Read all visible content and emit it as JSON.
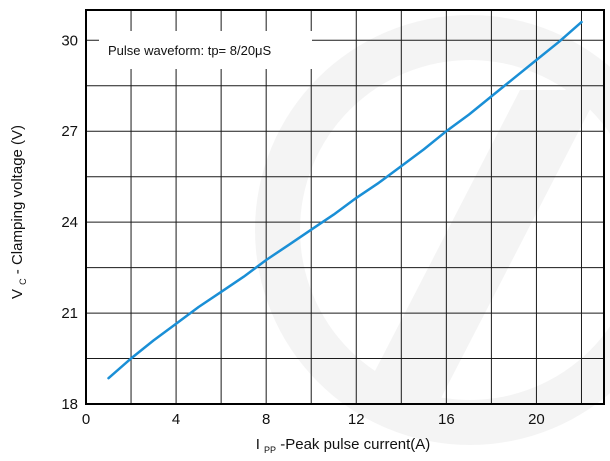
{
  "chart_data": {
    "type": "line",
    "annotation": "Pulse waveform: tp= 8/20μS",
    "xlabel": {
      "prefix": "I",
      "subscript": "PP",
      "suffix": "-Peak pulse current(A)"
    },
    "ylabel": {
      "prefix": "V",
      "subscript": "C",
      "suffix": "- Clamping voltage (V)"
    },
    "xlim": [
      0,
      23
    ],
    "ylim": [
      18,
      31
    ],
    "x_ticks": [
      0,
      4,
      8,
      12,
      16,
      20
    ],
    "y_ticks": [
      18,
      21,
      24,
      27,
      30
    ],
    "x_grid_step": 2,
    "y_grid_step": 1.5,
    "grid": true,
    "series": [
      {
        "color": "#1a8fd6",
        "x": [
          1,
          2,
          3,
          4,
          5,
          6,
          7,
          8,
          9,
          10,
          11,
          12,
          13,
          14,
          15,
          16,
          17,
          18,
          19,
          20,
          21,
          22
        ],
        "y": [
          18.85,
          19.5,
          20.1,
          20.65,
          21.2,
          21.7,
          22.2,
          22.75,
          23.25,
          23.75,
          24.25,
          24.8,
          25.3,
          25.85,
          26.4,
          27.0,
          27.55,
          28.15,
          28.75,
          29.35,
          29.95,
          30.6
        ]
      }
    ]
  }
}
